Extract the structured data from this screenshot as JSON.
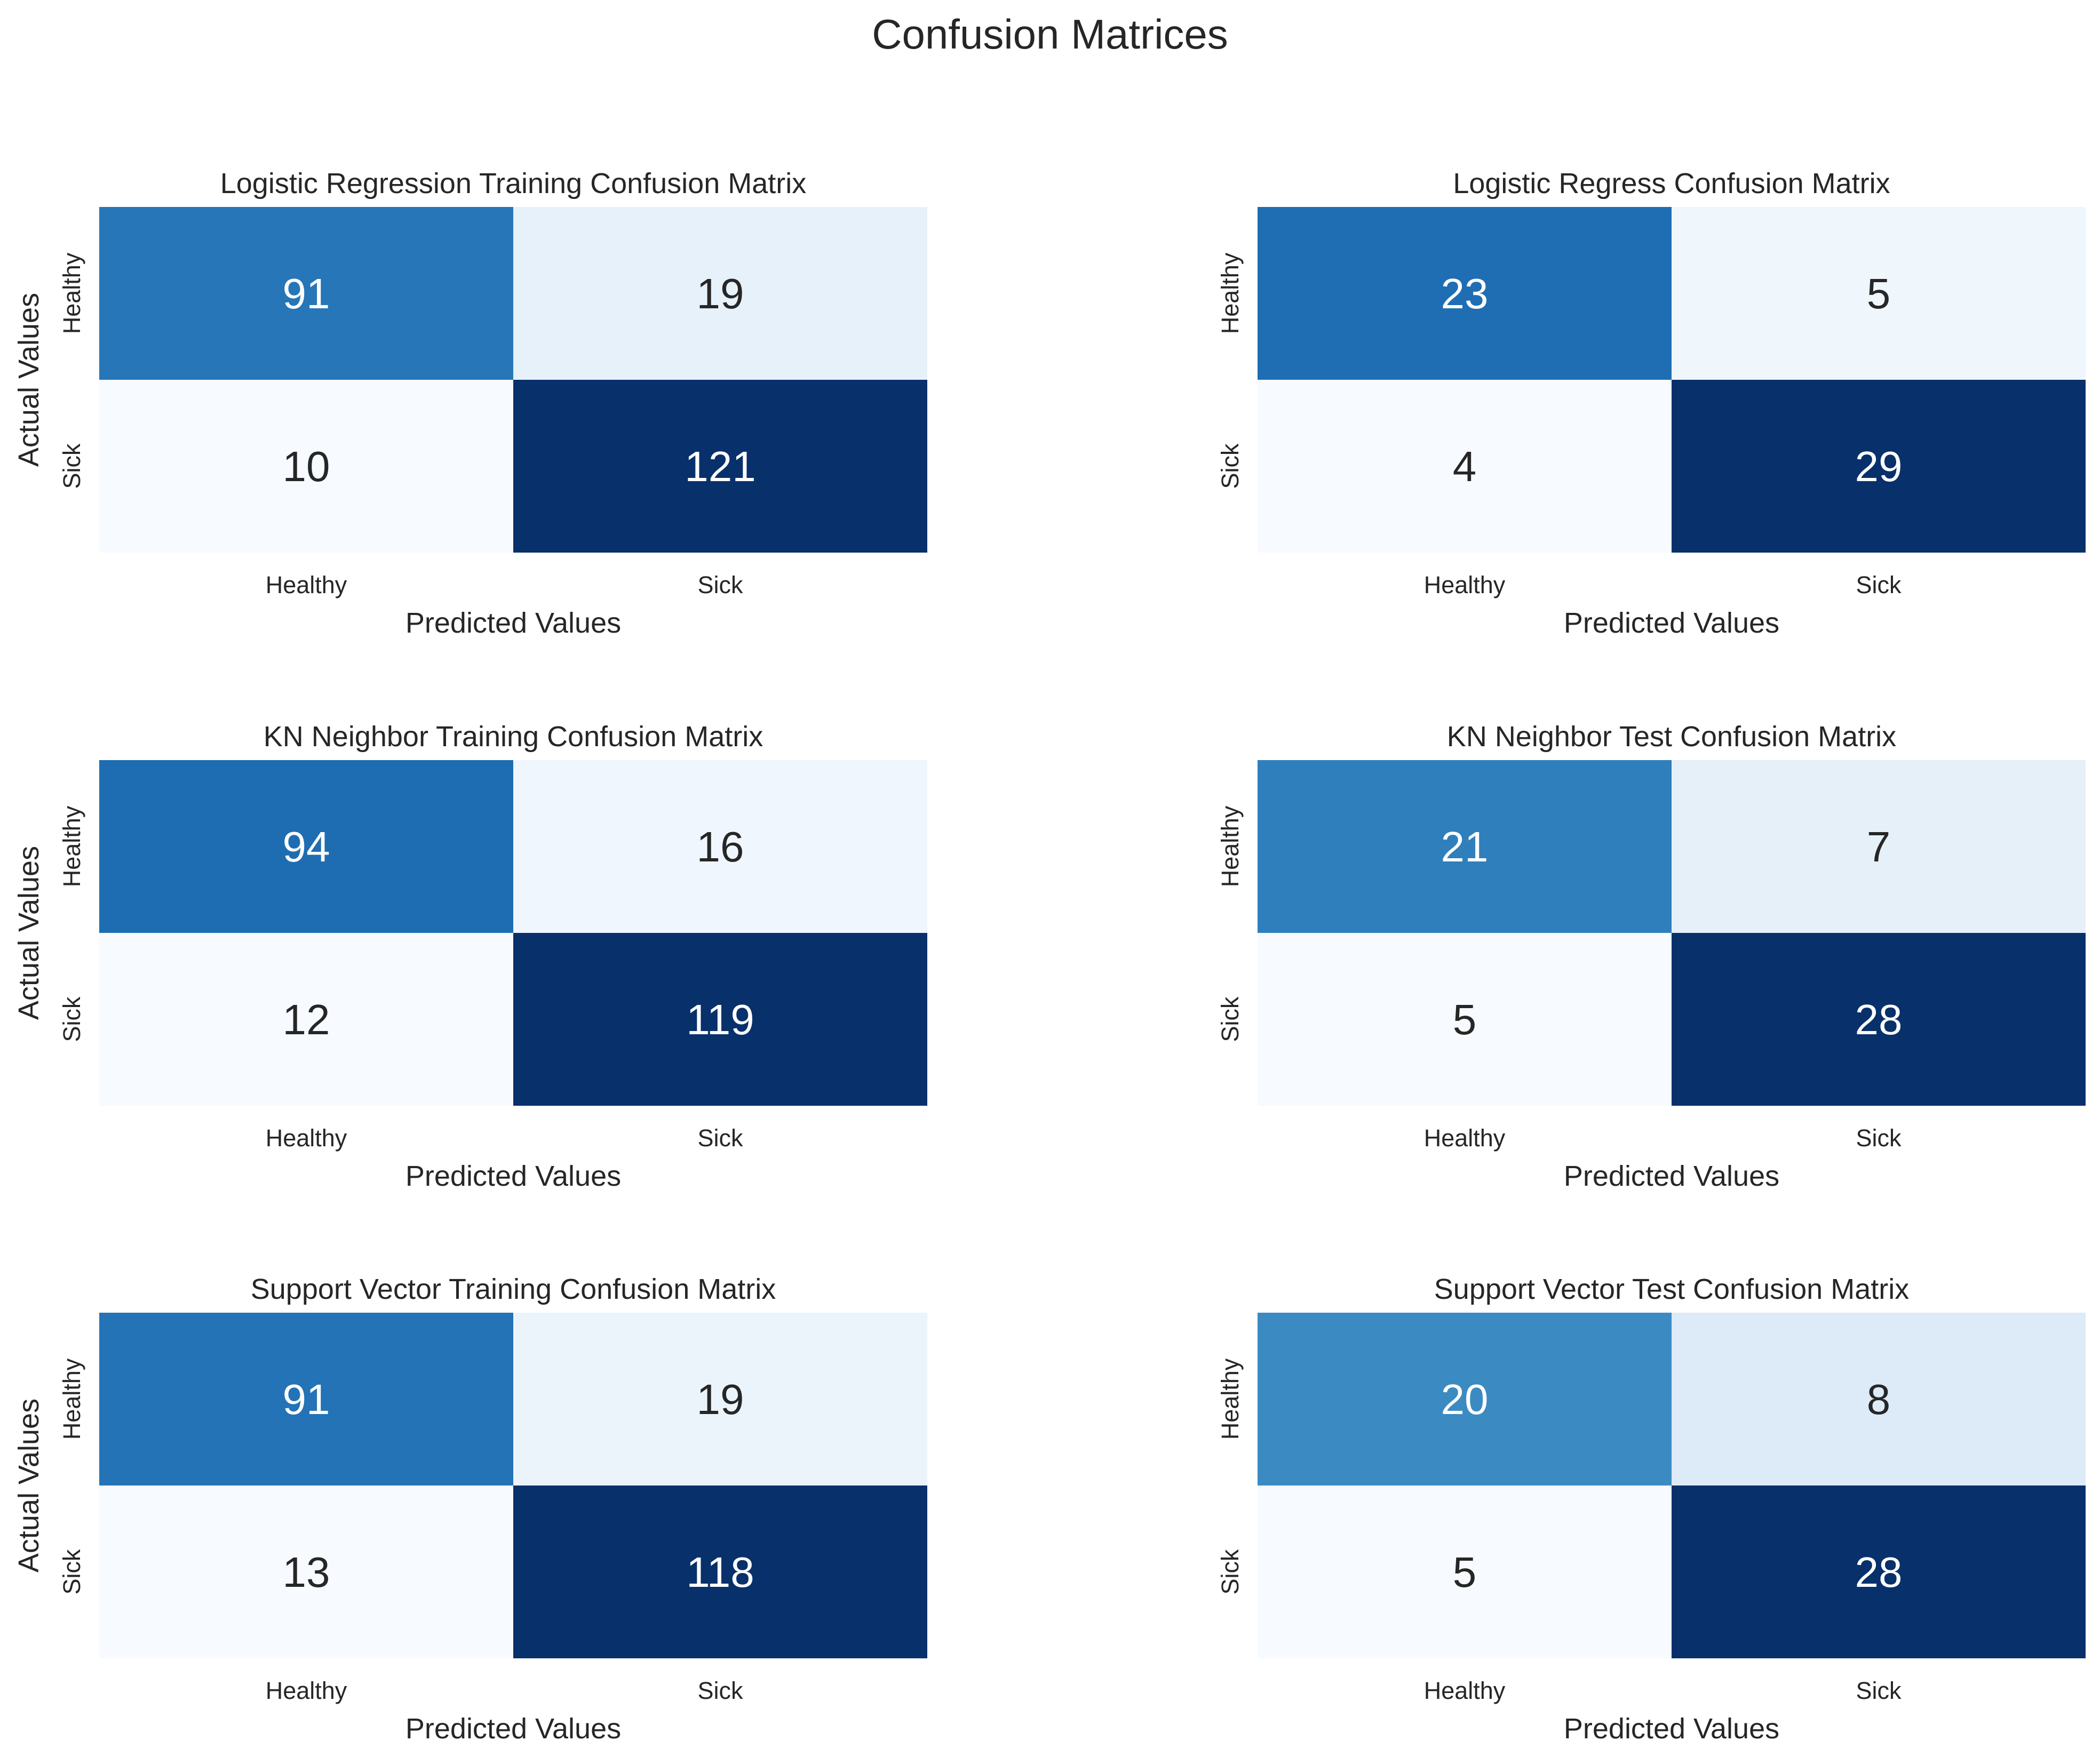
{
  "figure": {
    "title": "Confusion Matrices"
  },
  "colormap": {
    "name": "Blues",
    "low": "#f7fbff",
    "high": "#08306b",
    "dark_text": "#262626",
    "light_text": "#ffffff"
  },
  "chart_data": [
    {
      "type": "heatmap",
      "title": "Logistic Regression Training Confusion Matrix",
      "xlabel": "Predicted Values",
      "ylabel": "Actual Values",
      "x_categories": [
        "Healthy",
        "Sick"
      ],
      "y_categories": [
        "Healthy",
        "Sick"
      ],
      "values": [
        [
          91,
          19
        ],
        [
          10,
          121
        ]
      ],
      "colorbar": false,
      "annotations": true
    },
    {
      "type": "heatmap",
      "title": "Logistic Regress Confusion Matrix",
      "xlabel": "Predicted Values",
      "ylabel": "",
      "x_categories": [
        "Healthy",
        "Sick"
      ],
      "y_categories": [
        "Healthy",
        "Sick"
      ],
      "values": [
        [
          23,
          5
        ],
        [
          4,
          29
        ]
      ],
      "colorbar": false,
      "annotations": true
    },
    {
      "type": "heatmap",
      "title": "KN Neighbor Training Confusion Matrix",
      "xlabel": "Predicted Values",
      "ylabel": "Actual Values",
      "x_categories": [
        "Healthy",
        "Sick"
      ],
      "y_categories": [
        "Healthy",
        "Sick"
      ],
      "values": [
        [
          94,
          16
        ],
        [
          12,
          119
        ]
      ],
      "colorbar": false,
      "annotations": true
    },
    {
      "type": "heatmap",
      "title": "KN Neighbor  Test Confusion Matrix",
      "xlabel": "Predicted Values",
      "ylabel": "",
      "x_categories": [
        "Healthy",
        "Sick"
      ],
      "y_categories": [
        "Healthy",
        "Sick"
      ],
      "values": [
        [
          21,
          7
        ],
        [
          5,
          28
        ]
      ],
      "colorbar": false,
      "annotations": true
    },
    {
      "type": "heatmap",
      "title": "Support Vector Training Confusion Matrix",
      "xlabel": "Predicted Values",
      "ylabel": "Actual Values",
      "x_categories": [
        "Healthy",
        "Sick"
      ],
      "y_categories": [
        "Healthy",
        "Sick"
      ],
      "values": [
        [
          91,
          19
        ],
        [
          13,
          118
        ]
      ],
      "colorbar": false,
      "annotations": true
    },
    {
      "type": "heatmap",
      "title": "Support Vector Test Confusion Matrix",
      "xlabel": "Predicted Values",
      "ylabel": "",
      "x_categories": [
        "Healthy",
        "Sick"
      ],
      "y_categories": [
        "Healthy",
        "Sick"
      ],
      "values": [
        [
          20,
          8
        ],
        [
          5,
          28
        ]
      ],
      "colorbar": false,
      "annotations": true
    }
  ]
}
